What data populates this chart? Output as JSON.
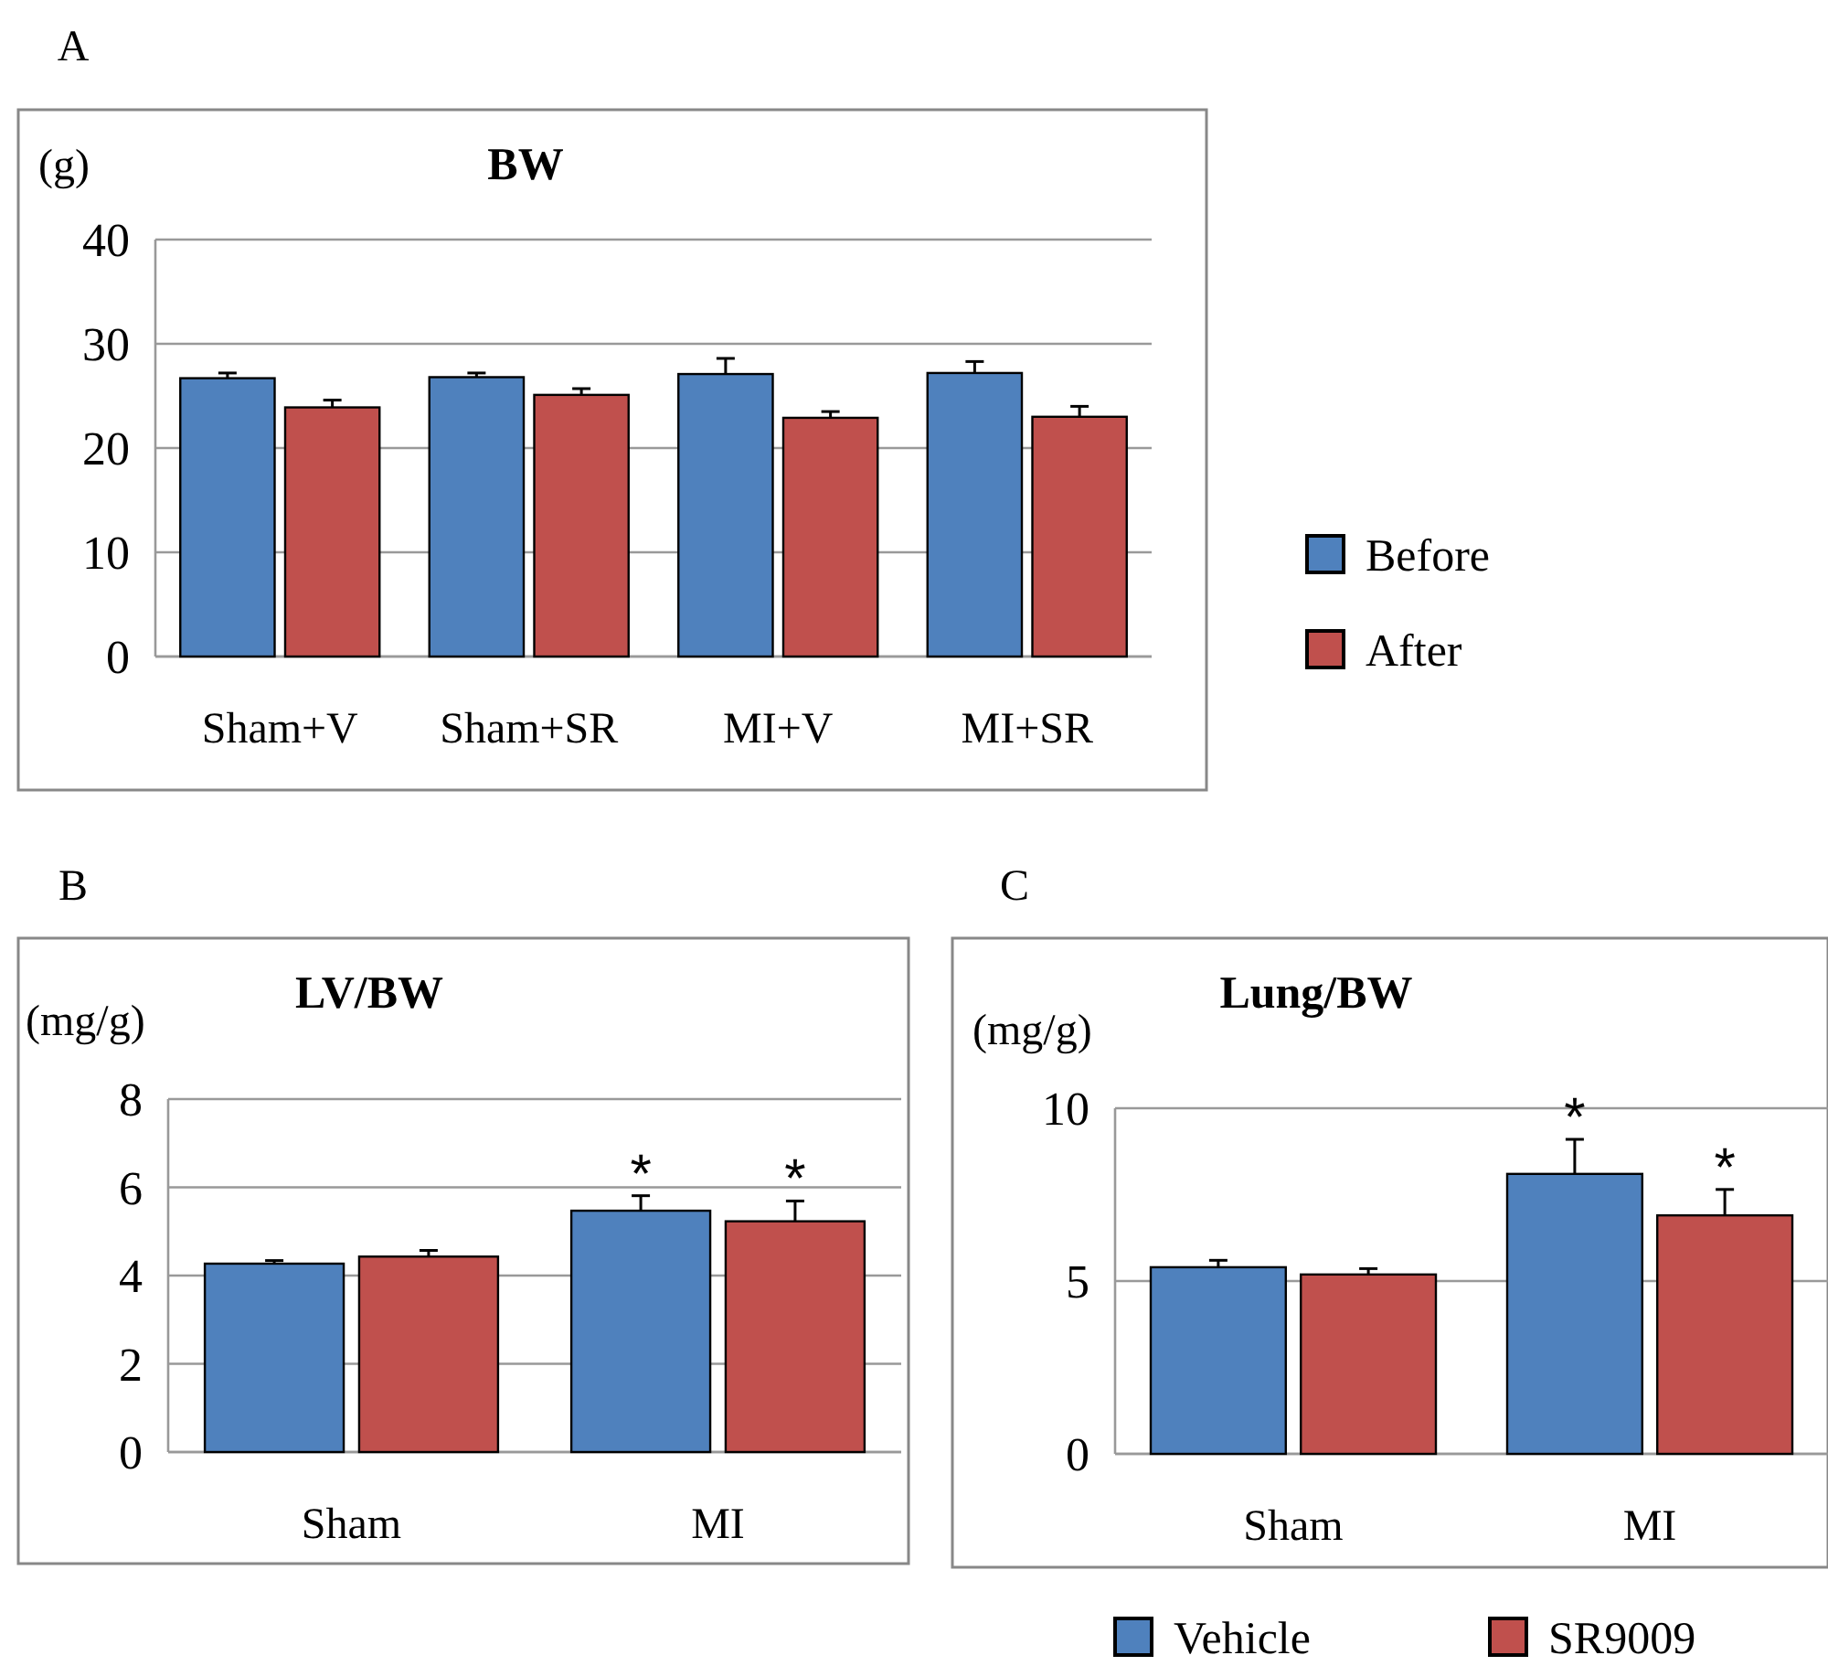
{
  "chart_data": [
    {
      "type": "bar",
      "title": "BW",
      "ylabel": "(g)",
      "annotations": [
        "A"
      ],
      "categories": [
        "Sham+V",
        "Sham+SR",
        "MI+V",
        "MI+SR"
      ],
      "series": [
        {
          "name": "Before",
          "color": "#4f81bd",
          "values": [
            26.7,
            26.8,
            27.1,
            27.2
          ],
          "errors": [
            0.5,
            0.4,
            1.5,
            1.1
          ]
        },
        {
          "name": "After",
          "color": "#c0504d",
          "values": [
            23.9,
            25.1,
            22.9,
            23.0
          ],
          "errors": [
            0.7,
            0.6,
            0.6,
            1.0
          ]
        }
      ],
      "ylim": [
        0,
        40
      ],
      "yticks": [
        0,
        10,
        20,
        30,
        40
      ],
      "grid": "y",
      "legend": "right"
    },
    {
      "type": "bar",
      "title": "LV/BW",
      "ylabel": "(mg/g)",
      "annotations": [
        "B",
        "*",
        "*"
      ],
      "categories": [
        "Sham",
        "MI"
      ],
      "series": [
        {
          "color": "#4f81bd",
          "values": [
            4.27,
            5.47
          ],
          "errors": [
            0.07,
            0.34
          ]
        },
        {
          "color": "#c0504d",
          "values": [
            4.43,
            5.23
          ],
          "errors": [
            0.14,
            0.46
          ]
        }
      ],
      "ylim": [
        0,
        8
      ],
      "yticks": [
        0,
        2,
        4,
        6,
        8
      ],
      "grid": "y",
      "legend": false
    },
    {
      "type": "bar",
      "title": "Lung/BW",
      "ylabel": "(mg/g)",
      "annotations": [
        "C",
        "*",
        "*"
      ],
      "categories": [
        "Sham",
        "MI"
      ],
      "series": [
        {
          "name": "Vehicle",
          "color": "#4f81bd",
          "values": [
            5.4,
            8.1
          ],
          "errors": [
            0.2,
            1.0
          ]
        },
        {
          "name": "SR9009",
          "color": "#c0504d",
          "values": [
            5.19,
            6.9
          ],
          "errors": [
            0.17,
            0.75
          ]
        }
      ],
      "ylim": [
        0,
        10
      ],
      "yticks": [
        0,
        5,
        10
      ],
      "grid": "y",
      "legend": "bottom"
    }
  ]
}
